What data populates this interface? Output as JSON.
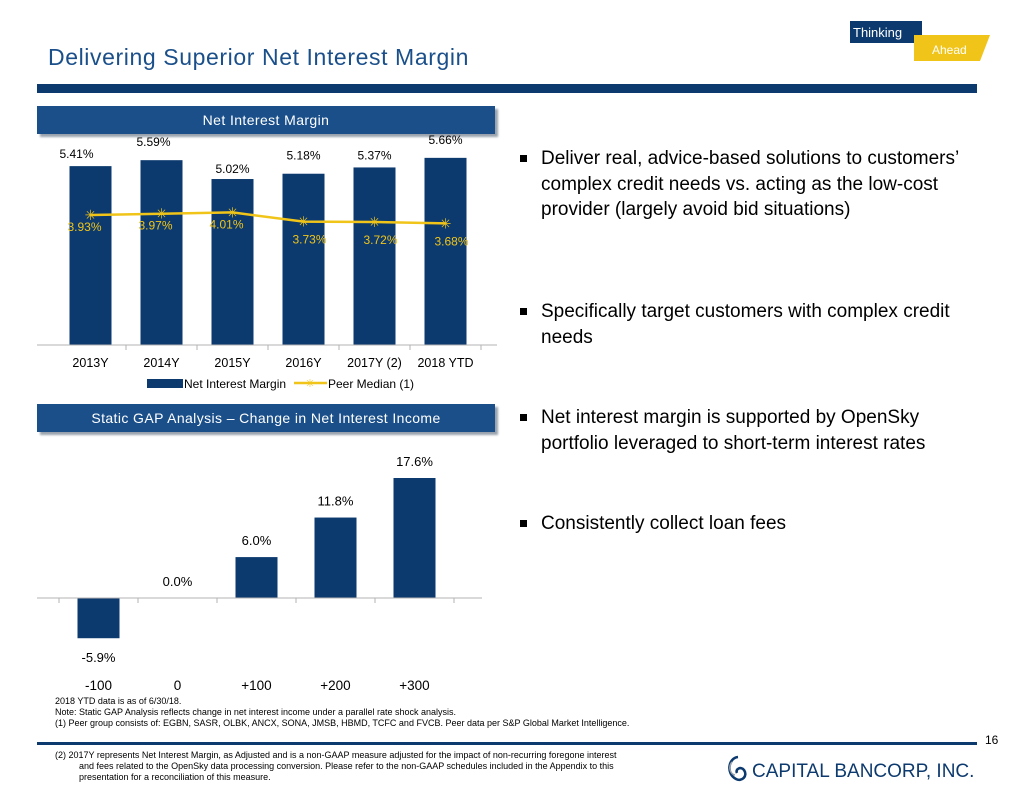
{
  "title": "Delivering Superior Net Interest Margin",
  "logo": {
    "word1": "Thinking",
    "word2": "Ahead",
    "navy": "#0d3a6e",
    "gold": "#f0c419"
  },
  "nim_panel": {
    "header": "Net Interest Margin"
  },
  "gap_panel": {
    "header": "Static GAP Analysis – Change in Net Interest Income"
  },
  "bullets": [
    "Deliver real, advice-based solutions to customers’ complex credit needs vs. acting as the low-cost provider (largely avoid bid situations)",
    "Specifically target customers with complex credit needs",
    "Net interest margin is supported by OpenSky portfolio leveraged to short-term interest rates",
    "Consistently collect loan fees"
  ],
  "chart_data": [
    {
      "type": "bar",
      "title": "Net Interest Margin",
      "categories": [
        "2013Y",
        "2014Y",
        "2015Y",
        "2016Y",
        "2017Y (2)",
        "2018 YTD"
      ],
      "series": [
        {
          "name": "Net Interest Margin",
          "kind": "bar",
          "values": [
            5.41,
            5.59,
            5.02,
            5.18,
            5.37,
            5.66
          ],
          "labels": [
            "5.41%",
            "5.59%",
            "5.02%",
            "5.18%",
            "5.37%",
            "5.66%"
          ],
          "color": "#0d3a6e"
        },
        {
          "name": "Peer Median (1)",
          "kind": "line",
          "values": [
            3.93,
            3.97,
            4.01,
            3.73,
            3.72,
            3.68
          ],
          "labels": [
            "3.93%",
            "3.97%",
            "4.01%",
            "3.73%",
            "3.72%",
            "3.68%"
          ],
          "color": "#f0c419"
        }
      ],
      "ylim": [
        0,
        6.2
      ],
      "legend": "bottom"
    },
    {
      "type": "bar",
      "title": "Static GAP Analysis – Change in Net Interest Income",
      "categories": [
        "-100",
        "0",
        "+100",
        "+200",
        "+300"
      ],
      "values": [
        -5.9,
        0.0,
        6.0,
        11.8,
        17.6
      ],
      "labels": [
        "-5.9%",
        "0.0%",
        "6.0%",
        "11.8%",
        "17.6%"
      ],
      "ylim": [
        -7.5,
        20
      ],
      "color": "#0d3a6e"
    }
  ],
  "footnotes": {
    "line1": "2018 YTD data is as of 6/30/18.",
    "line2": "Note: Static GAP Analysis reflects change in net interest income under a parallel rate shock analysis.",
    "line3": "(1)      Peer group consists of: EGBN, SASR, OLBK, ANCX, SONA, JMSB, HBMD, TCFC and FVCB. Peer data per S&P Global Market Intelligence.",
    "line4": "(2)    2017Y represents Net Interest Margin, as Adjusted and is a non-GAAP measure adjusted for the impact of non-recurring foregone interest",
    "line5": "and fees related to the OpenSky data processing conversion. Please refer to the non-GAAP schedules included in the Appendix to this",
    "line6": "presentation for a reconciliation of this measure."
  },
  "page_number": "16",
  "company": {
    "name": "CAPITAL BANCORP, INC.",
    "color": "#0d3a6e"
  }
}
